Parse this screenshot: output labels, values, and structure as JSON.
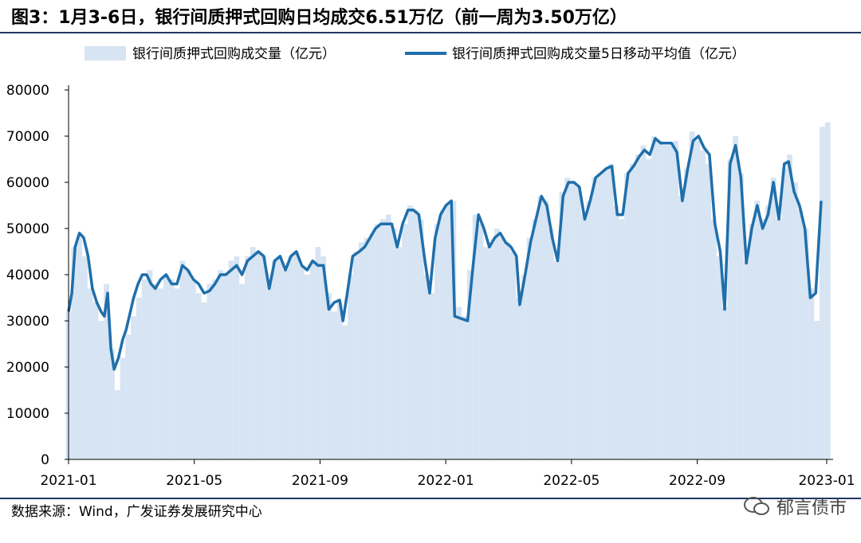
{
  "header": {
    "title": "图3：1月3-6日，银行间质押式回购日均成交6.51万亿（前一周为3.50万亿）"
  },
  "footer": {
    "source": "数据来源：Wind，广发证券发展研究中心",
    "watermark": "郁言债市"
  },
  "colors": {
    "bar": "#d6e4f3",
    "line": "#1f6fab",
    "rule": "#1f3864"
  },
  "chart_data": {
    "type": "bar",
    "ylim": [
      0,
      80000
    ],
    "yticks": [
      "0",
      "10000",
      "20000",
      "30000",
      "40000",
      "50000",
      "60000",
      "70000",
      "80000"
    ],
    "xticks": [
      "2021-01",
      "2021-05",
      "2021-09",
      "2022-01",
      "2022-05",
      "2022-09",
      "2023-01"
    ],
    "grid": false,
    "legend_position": "top",
    "series": [
      {
        "name": "银行间质押式回购成交量（亿元）",
        "type": "bar",
        "values": [
          [
            0,
            32000
          ],
          [
            0.5,
            46000
          ],
          [
            1,
            48000
          ],
          [
            1.5,
            44000
          ],
          [
            2,
            37000
          ],
          [
            2.5,
            34000
          ],
          [
            3,
            30000
          ],
          [
            3.5,
            38000
          ],
          [
            4,
            24000
          ],
          [
            4.5,
            15000
          ],
          [
            5,
            22000
          ],
          [
            5.5,
            27000
          ],
          [
            6,
            31000
          ],
          [
            6.5,
            35000
          ],
          [
            7,
            39000
          ],
          [
            7.5,
            41000
          ],
          [
            8,
            38000
          ],
          [
            8.5,
            37000
          ],
          [
            9,
            40000
          ],
          [
            9.5,
            39000
          ],
          [
            10,
            37000
          ],
          [
            10.5,
            43000
          ],
          [
            11,
            41000
          ],
          [
            11.5,
            39000
          ],
          [
            12,
            36000
          ],
          [
            12.5,
            34000
          ],
          [
            13,
            38000
          ],
          [
            13.5,
            39000
          ],
          [
            14,
            41000
          ],
          [
            14.5,
            40000
          ],
          [
            15,
            43000
          ],
          [
            15.5,
            44000
          ],
          [
            16,
            38000
          ],
          [
            16.5,
            44000
          ],
          [
            17,
            46000
          ],
          [
            17.5,
            45000
          ],
          [
            18,
            44000
          ],
          [
            18.5,
            38000
          ],
          [
            19,
            43000
          ],
          [
            19.5,
            44000
          ],
          [
            20,
            41000
          ],
          [
            20.5,
            44000
          ],
          [
            21,
            45000
          ],
          [
            21.5,
            42000
          ],
          [
            22,
            40000
          ],
          [
            22.5,
            43000
          ],
          [
            23,
            46000
          ],
          [
            23.5,
            44000
          ],
          [
            24,
            36000
          ],
          [
            24.5,
            32000
          ],
          [
            25,
            34000
          ],
          [
            25.5,
            29000
          ],
          [
            26,
            40000
          ],
          [
            26.5,
            45000
          ],
          [
            27,
            47000
          ],
          [
            27.5,
            48000
          ],
          [
            28,
            49000
          ],
          [
            28.5,
            51000
          ],
          [
            29,
            52000
          ],
          [
            29.5,
            53000
          ],
          [
            30,
            50000
          ],
          [
            30.5,
            46000
          ],
          [
            31,
            51000
          ],
          [
            31.5,
            55000
          ],
          [
            32,
            54000
          ],
          [
            32.5,
            52000
          ],
          [
            33,
            40000
          ],
          [
            33.5,
            36000
          ],
          [
            34,
            51000
          ],
          [
            34.5,
            54000
          ],
          [
            35,
            55000
          ],
          [
            35.5,
            56000
          ],
          [
            36,
            33000
          ],
          [
            36.5,
            31000
          ],
          [
            37,
            41000
          ],
          [
            37.5,
            53000
          ],
          [
            38,
            51000
          ],
          [
            38.5,
            46000
          ],
          [
            39,
            47000
          ],
          [
            39.5,
            50000
          ],
          [
            40,
            48000
          ],
          [
            40.5,
            47000
          ],
          [
            41,
            45000
          ],
          [
            41.5,
            35000
          ],
          [
            42,
            40000
          ],
          [
            42.5,
            48000
          ],
          [
            43,
            52000
          ],
          [
            43.5,
            57000
          ],
          [
            44,
            56000
          ],
          [
            44.5,
            50000
          ],
          [
            45,
            43000
          ],
          [
            45.5,
            58000
          ],
          [
            46,
            61000
          ],
          [
            46.5,
            60000
          ],
          [
            47,
            59000
          ],
          [
            47.5,
            53000
          ],
          [
            48,
            56000
          ],
          [
            48.5,
            61000
          ],
          [
            49,
            62000
          ],
          [
            49.5,
            63000
          ],
          [
            50,
            64000
          ],
          [
            50.5,
            55000
          ],
          [
            51,
            52000
          ],
          [
            51.5,
            62000
          ],
          [
            52,
            64000
          ],
          [
            52.5,
            66000
          ],
          [
            53,
            68000
          ],
          [
            53.5,
            65000
          ],
          [
            54,
            70000
          ],
          [
            54.5,
            69000
          ],
          [
            55,
            68000
          ],
          [
            55.5,
            68000
          ],
          [
            56,
            69000
          ],
          [
            56.5,
            57000
          ],
          [
            57,
            63000
          ],
          [
            57.5,
            71000
          ],
          [
            58,
            69000
          ],
          [
            58.5,
            67000
          ],
          [
            59,
            64000
          ],
          [
            59.5,
            52000
          ],
          [
            60,
            44000
          ],
          [
            60.5,
            33000
          ],
          [
            61,
            65000
          ],
          [
            61.5,
            70000
          ],
          [
            62,
            62000
          ],
          [
            62.5,
            43000
          ],
          [
            63,
            51000
          ],
          [
            63.5,
            56000
          ],
          [
            64,
            52000
          ],
          [
            64.5,
            55000
          ],
          [
            65,
            61000
          ],
          [
            65.5,
            52000
          ],
          [
            66,
            63000
          ],
          [
            66.5,
            66000
          ],
          [
            67,
            60000
          ],
          [
            67.5,
            54000
          ],
          [
            68,
            50000
          ],
          [
            68.5,
            37000
          ],
          [
            69,
            30000
          ],
          [
            69.5,
            72000
          ],
          [
            70,
            73000
          ]
        ]
      },
      {
        "name": "银行间质押式回购成交量5日移动平均值（亿元）",
        "type": "line",
        "values": [
          [
            0,
            32000
          ],
          [
            0.3,
            36000
          ],
          [
            0.6,
            46000
          ],
          [
            1,
            49000
          ],
          [
            1.4,
            48000
          ],
          [
            1.8,
            44000
          ],
          [
            2.2,
            37000
          ],
          [
            2.6,
            34000
          ],
          [
            3,
            32000
          ],
          [
            3.3,
            31000
          ],
          [
            3.6,
            36000
          ],
          [
            3.9,
            24000
          ],
          [
            4.2,
            19500
          ],
          [
            4.6,
            22000
          ],
          [
            5,
            26000
          ],
          [
            5.3,
            28000
          ],
          [
            5.6,
            31000
          ],
          [
            6,
            35000
          ],
          [
            6.4,
            38000
          ],
          [
            6.8,
            40000
          ],
          [
            7.2,
            40000
          ],
          [
            7.6,
            38000
          ],
          [
            8,
            37000
          ],
          [
            8.5,
            39000
          ],
          [
            9,
            40000
          ],
          [
            9.5,
            38000
          ],
          [
            10,
            38000
          ],
          [
            10.5,
            42000
          ],
          [
            11,
            41000
          ],
          [
            11.5,
            39000
          ],
          [
            12,
            38000
          ],
          [
            12.5,
            36000
          ],
          [
            13,
            36500
          ],
          [
            13.5,
            38000
          ],
          [
            14,
            40000
          ],
          [
            14.5,
            40000
          ],
          [
            15,
            41000
          ],
          [
            15.5,
            42000
          ],
          [
            16,
            40000
          ],
          [
            16.5,
            43000
          ],
          [
            17,
            44000
          ],
          [
            17.5,
            45000
          ],
          [
            18,
            44000
          ],
          [
            18.5,
            37000
          ],
          [
            19,
            43000
          ],
          [
            19.5,
            44000
          ],
          [
            20,
            41000
          ],
          [
            20.5,
            44000
          ],
          [
            21,
            45000
          ],
          [
            21.5,
            42000
          ],
          [
            22,
            41000
          ],
          [
            22.5,
            43000
          ],
          [
            23,
            42000
          ],
          [
            23.5,
            42000
          ],
          [
            24,
            32500
          ],
          [
            24.5,
            34000
          ],
          [
            25,
            34500
          ],
          [
            25.3,
            30000
          ],
          [
            25.7,
            36000
          ],
          [
            26.2,
            44000
          ],
          [
            26.8,
            45000
          ],
          [
            27.3,
            46000
          ],
          [
            27.8,
            48000
          ],
          [
            28.3,
            50000
          ],
          [
            28.8,
            51000
          ],
          [
            29.3,
            51000
          ],
          [
            29.8,
            51000
          ],
          [
            30.3,
            46000
          ],
          [
            30.8,
            51000
          ],
          [
            31.3,
            54000
          ],
          [
            31.8,
            54000
          ],
          [
            32.3,
            53000
          ],
          [
            32.8,
            44000
          ],
          [
            33.3,
            36000
          ],
          [
            33.8,
            48000
          ],
          [
            34.3,
            53000
          ],
          [
            34.8,
            55000
          ],
          [
            35.3,
            56000
          ],
          [
            35.6,
            31000
          ],
          [
            36.2,
            30500
          ],
          [
            36.8,
            30000
          ],
          [
            37.3,
            42000
          ],
          [
            37.8,
            53000
          ],
          [
            38.3,
            50000
          ],
          [
            38.8,
            46000
          ],
          [
            39.3,
            48000
          ],
          [
            39.8,
            49000
          ],
          [
            40.3,
            47000
          ],
          [
            40.8,
            46000
          ],
          [
            41.3,
            44000
          ],
          [
            41.6,
            33500
          ],
          [
            42.1,
            40000
          ],
          [
            42.6,
            47000
          ],
          [
            43.1,
            52000
          ],
          [
            43.6,
            57000
          ],
          [
            44.1,
            55000
          ],
          [
            44.6,
            48000
          ],
          [
            45.1,
            43000
          ],
          [
            45.6,
            57000
          ],
          [
            46.1,
            60000
          ],
          [
            46.6,
            60000
          ],
          [
            47.1,
            59000
          ],
          [
            47.6,
            52000
          ],
          [
            48.1,
            56000
          ],
          [
            48.6,
            61000
          ],
          [
            49.1,
            62000
          ],
          [
            49.6,
            63000
          ],
          [
            50.1,
            63500
          ],
          [
            50.6,
            53000
          ],
          [
            51.1,
            53000
          ],
          [
            51.6,
            62000
          ],
          [
            52.1,
            63500
          ],
          [
            52.6,
            65500
          ],
          [
            53.1,
            67000
          ],
          [
            53.6,
            66000
          ],
          [
            54.1,
            69500
          ],
          [
            54.6,
            68500
          ],
          [
            55.1,
            68500
          ],
          [
            55.6,
            68500
          ],
          [
            56.1,
            66500
          ],
          [
            56.6,
            56000
          ],
          [
            57.1,
            63000
          ],
          [
            57.6,
            69000
          ],
          [
            58.1,
            70000
          ],
          [
            58.6,
            67500
          ],
          [
            59.1,
            66000
          ],
          [
            59.6,
            51000
          ],
          [
            60.1,
            45000
          ],
          [
            60.5,
            32500
          ],
          [
            61,
            64000
          ],
          [
            61.5,
            68000
          ],
          [
            62,
            61000
          ],
          [
            62.5,
            42500
          ],
          [
            63,
            50000
          ],
          [
            63.5,
            55000
          ],
          [
            64,
            50000
          ],
          [
            64.5,
            53000
          ],
          [
            65,
            60000
          ],
          [
            65.5,
            52000
          ],
          [
            66,
            64000
          ],
          [
            66.4,
            64500
          ],
          [
            66.9,
            58000
          ],
          [
            67.4,
            55000
          ],
          [
            67.9,
            50000
          ],
          [
            68.4,
            35000
          ],
          [
            68.9,
            36000
          ],
          [
            69.4,
            56000
          ]
        ]
      }
    ]
  }
}
